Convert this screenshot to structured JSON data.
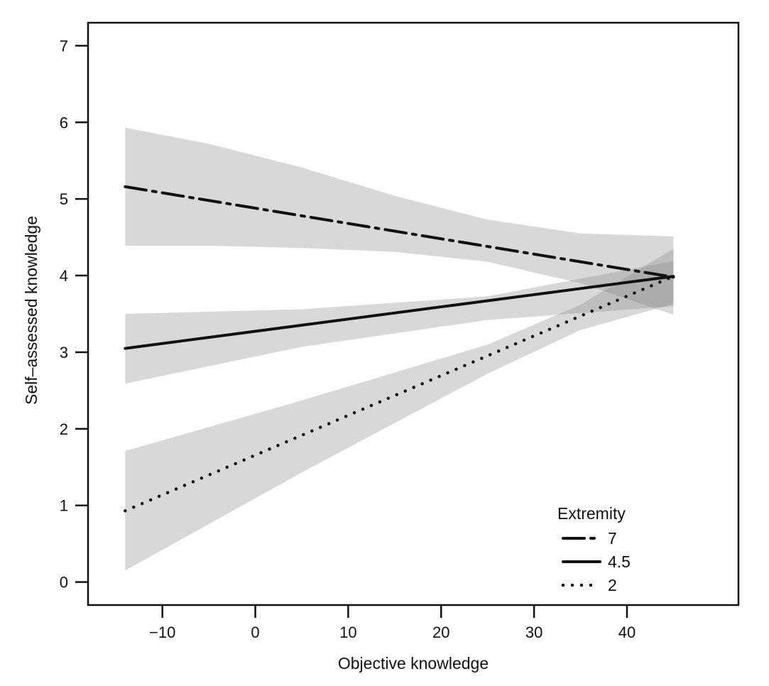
{
  "chart_data": {
    "type": "line",
    "title": "",
    "xlabel": "Objective knowledge",
    "ylabel": "Self–assessed knowledge",
    "xlim": [
      -18,
      52
    ],
    "ylim": [
      -0.3,
      7.3
    ],
    "xticks": [
      -10,
      0,
      10,
      20,
      30,
      40
    ],
    "xtick_labels": [
      "−10",
      "0",
      "10",
      "20",
      "30",
      "40"
    ],
    "yticks": [
      0,
      1,
      2,
      3,
      4,
      5,
      6,
      7
    ],
    "ytick_labels": [
      "0",
      "1",
      "2",
      "3",
      "4",
      "5",
      "6",
      "7"
    ],
    "grid": false,
    "legend": {
      "title": "Extremity",
      "position": "bottom-right"
    },
    "series": [
      {
        "name": "7",
        "style": "dash-dot",
        "x": [
          -14,
          45
        ],
        "y": [
          5.16,
          3.98
        ],
        "band": {
          "x": [
            -14,
            -5,
            5,
            15,
            25,
            35,
            45
          ],
          "upper": [
            5.93,
            5.72,
            5.41,
            5.04,
            4.73,
            4.55,
            4.51
          ],
          "lower": [
            4.39,
            4.39,
            4.36,
            4.31,
            4.18,
            3.9,
            3.49
          ]
        }
      },
      {
        "name": "4.5",
        "style": "solid",
        "x": [
          -14,
          45
        ],
        "y": [
          3.05,
          3.99
        ],
        "band": {
          "x": [
            -14,
            5,
            25,
            45
          ],
          "upper": [
            3.5,
            3.56,
            3.73,
            4.19
          ],
          "lower": [
            2.59,
            3.07,
            3.42,
            3.6
          ]
        }
      },
      {
        "name": "2",
        "style": "dotted",
        "x": [
          -14,
          45
        ],
        "y": [
          0.93,
          3.99
        ],
        "band": {
          "x": [
            -14,
            5,
            25,
            35,
            45
          ],
          "upper": [
            1.71,
            2.37,
            3.1,
            3.62,
            4.35
          ],
          "lower": [
            0.15,
            1.43,
            2.72,
            3.29,
            3.63
          ]
        }
      }
    ]
  }
}
